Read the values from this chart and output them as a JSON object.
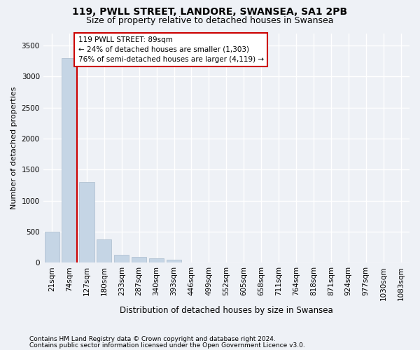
{
  "title1": "119, PWLL STREET, LANDORE, SWANSEA, SA1 2PB",
  "title2": "Size of property relative to detached houses in Swansea",
  "xlabel": "Distribution of detached houses by size in Swansea",
  "ylabel": "Number of detached properties",
  "footnote1": "Contains HM Land Registry data © Crown copyright and database right 2024.",
  "footnote2": "Contains public sector information licensed under the Open Government Licence v3.0.",
  "categories": [
    "21sqm",
    "74sqm",
    "127sqm",
    "180sqm",
    "233sqm",
    "287sqm",
    "340sqm",
    "393sqm",
    "446sqm",
    "499sqm",
    "552sqm",
    "605sqm",
    "658sqm",
    "711sqm",
    "764sqm",
    "818sqm",
    "871sqm",
    "924sqm",
    "977sqm",
    "1030sqm",
    "1083sqm"
  ],
  "values": [
    500,
    3300,
    1300,
    380,
    130,
    90,
    70,
    50,
    0,
    0,
    0,
    0,
    0,
    0,
    0,
    0,
    0,
    0,
    0,
    0,
    0
  ],
  "bar_color": "#c5d5e5",
  "bar_edge_color": "#aabccc",
  "property_line_color": "#cc0000",
  "annotation_text": "119 PWLL STREET: 89sqm\n← 24% of detached houses are smaller (1,303)\n76% of semi-detached houses are larger (4,119) →",
  "annotation_box_facecolor": "white",
  "annotation_box_edgecolor": "#cc0000",
  "ylim": [
    0,
    3700
  ],
  "yticks": [
    0,
    500,
    1000,
    1500,
    2000,
    2500,
    3000,
    3500
  ],
  "bg_color": "#eef1f6",
  "grid_color": "white",
  "title1_fontsize": 10,
  "title2_fontsize": 9,
  "xlabel_fontsize": 8.5,
  "ylabel_fontsize": 8,
  "tick_fontsize": 7.5,
  "annotation_fontsize": 7.5,
  "footnote_fontsize": 6.5
}
